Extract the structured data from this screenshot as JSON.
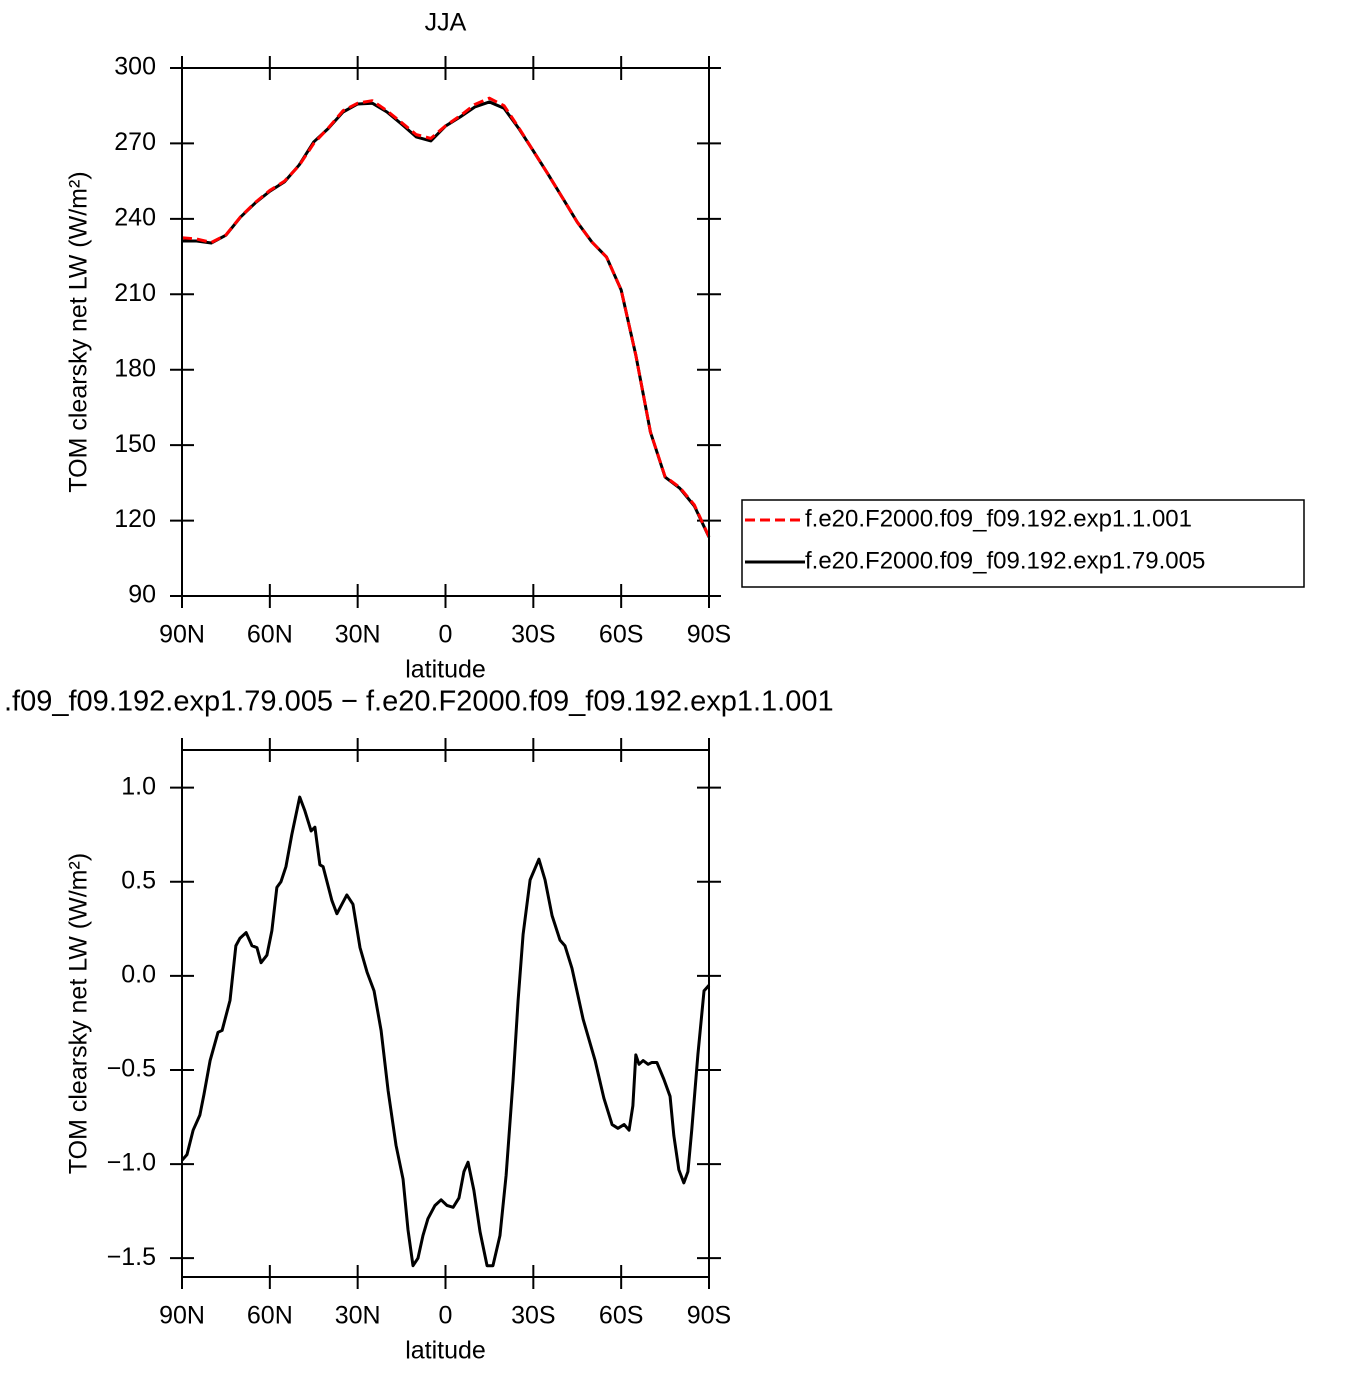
{
  "chart_data": [
    {
      "type": "line",
      "title": "JJA",
      "xlabel": "latitude",
      "ylabel": "TOM clearsky net LW (W/m²)",
      "x": [
        90,
        85,
        80,
        75,
        70,
        65,
        60,
        55,
        50,
        45,
        40,
        35,
        30,
        25,
        20,
        15,
        10,
        5,
        0,
        -5,
        -10,
        -15,
        -20,
        -25,
        -30,
        -35,
        -40,
        -45,
        -50,
        -55,
        -60,
        -65,
        -70,
        -75,
        -80,
        -85,
        -90
      ],
      "series": [
        {
          "name": "f.e20.F2000.f09_f09.192.exp1.1.001",
          "color": "#ff0000",
          "linestyle": "dashed",
          "values": [
            232.5,
            232,
            230.6,
            233.6,
            240.8,
            246.5,
            251.3,
            255,
            261.2,
            270,
            276.2,
            283,
            286,
            287,
            283,
            278.3,
            273.5,
            272,
            277,
            281,
            285.5,
            288,
            285,
            276.3,
            267,
            257.8,
            248.3,
            238.7,
            230.8,
            224.8,
            211.7,
            185.8,
            155.2,
            137.5,
            133.2,
            126.2,
            113.5
          ]
        },
        {
          "name": "f.e20.F2000.f09_f09.192.exp1.79.005",
          "color": "#000000",
          "linestyle": "solid",
          "values": [
            231.2,
            231.2,
            230.4,
            233.5,
            240.7,
            246.3,
            251,
            254.7,
            261.4,
            270.6,
            276,
            282.5,
            285.7,
            286,
            282.5,
            277.7,
            272.6,
            271,
            276.9,
            280.5,
            284.5,
            286.5,
            284,
            276,
            267,
            257.8,
            248.3,
            238.7,
            230.8,
            224.8,
            211.7,
            185.8,
            155.2,
            137.3,
            132.9,
            125.8,
            113.4
          ]
        }
      ],
      "xlim": [
        90,
        -90
      ],
      "xticks": [
        {
          "value": 90,
          "label": "90N"
        },
        {
          "value": 60,
          "label": "60N"
        },
        {
          "value": 30,
          "label": "30N"
        },
        0,
        {
          "value": -30,
          "label": "30S"
        },
        {
          "value": -60,
          "label": "60S"
        },
        {
          "value": -90,
          "label": "90S"
        }
      ],
      "ylim": [
        90,
        300
      ],
      "yticks": [
        90,
        120,
        150,
        180,
        210,
        240,
        270,
        300
      ],
      "legend": "right"
    },
    {
      "type": "line",
      "title": ".f09_f09.192.exp1.79.005 − f.e20.F2000.f09_f09.192.exp1.1.001",
      "xlabel": "latitude",
      "ylabel": "TOM clearsky net LW (W/m²)",
      "x": [
        90,
        88.3,
        86.2,
        83.9,
        82.5,
        80.4,
        77.7,
        76.3,
        73.6,
        71.6,
        70.2,
        68.1,
        66.1,
        64.4,
        63,
        61,
        59.3,
        57.6,
        56.2,
        54.5,
        52.5,
        49.8,
        48.1,
        45.9,
        44.6,
        42.9,
        41.8,
        38.8,
        37.1,
        35.4,
        33.7,
        31.6,
        29.2,
        26.8,
        24.4,
        22,
        19.6,
        16.9,
        14.5,
        12.8,
        11.1,
        9.4,
        7.7,
        6,
        3.6,
        1.5,
        -0.5,
        -2.6,
        -4.6,
        -6.3,
        -7.7,
        -9.7,
        -11.8,
        -14.2,
        -16.2,
        -18.6,
        -20.7,
        -23.1,
        -24.8,
        -26.5,
        -28.9,
        -31.9,
        -34,
        -36.4,
        -39.1,
        -40.8,
        -43.2,
        -47,
        -51.1,
        -54.1,
        -56.9,
        -58.9,
        -61,
        -62.7,
        -64,
        -65,
        -66.1,
        -67.5,
        -69.2,
        -70.5,
        -72.2,
        -74.6,
        -76.7,
        -78,
        -79.7,
        -81.4,
        -82.8,
        -84.1,
        -86.2,
        -88.3,
        -90
      ],
      "series": [
        {
          "color": "#000000",
          "linestyle": "solid",
          "values": [
            -0.98,
            -0.95,
            -0.82,
            -0.74,
            -0.63,
            -0.45,
            -0.3,
            -0.29,
            -0.13,
            0.16,
            0.2,
            0.23,
            0.16,
            0.15,
            0.07,
            0.11,
            0.24,
            0.47,
            0.5,
            0.58,
            0.75,
            0.95,
            0.88,
            0.77,
            0.79,
            0.59,
            0.58,
            0.4,
            0.33,
            0.38,
            0.43,
            0.38,
            0.15,
            0.02,
            -0.08,
            -0.29,
            -0.61,
            -0.9,
            -1.08,
            -1.35,
            -1.54,
            -1.5,
            -1.38,
            -1.29,
            -1.22,
            -1.19,
            -1.22,
            -1.23,
            -1.18,
            -1.04,
            -0.99,
            -1.14,
            -1.36,
            -1.54,
            -1.54,
            -1.38,
            -1.06,
            -0.55,
            -0.13,
            0.22,
            0.51,
            0.62,
            0.51,
            0.32,
            0.19,
            0.16,
            0.04,
            -0.23,
            -0.45,
            -0.65,
            -0.79,
            -0.81,
            -0.79,
            -0.82,
            -0.69,
            -0.42,
            -0.47,
            -0.45,
            -0.47,
            -0.46,
            -0.46,
            -0.55,
            -0.64,
            -0.85,
            -1.03,
            -1.1,
            -1.04,
            -0.82,
            -0.42,
            -0.08,
            -0.05
          ]
        }
      ],
      "xlim": [
        90,
        -90
      ],
      "xticks": [
        {
          "value": 90,
          "label": "90N"
        },
        {
          "value": 60,
          "label": "60N"
        },
        {
          "value": 30,
          "label": "30N"
        },
        0,
        {
          "value": -30,
          "label": "30S"
        },
        {
          "value": -60,
          "label": "60S"
        },
        {
          "value": -90,
          "label": "90S"
        }
      ],
      "ylim": [
        -1.6,
        1.2
      ],
      "yticks": [
        {
          "value": -1.5,
          "label": "−1.5"
        },
        {
          "value": -1,
          "label": "−1.0"
        },
        {
          "value": -0.5,
          "label": "−0.5"
        },
        {
          "value": 0,
          "label": "0.0"
        },
        0.5,
        {
          "value": 1,
          "label": "1.0"
        }
      ]
    }
  ]
}
